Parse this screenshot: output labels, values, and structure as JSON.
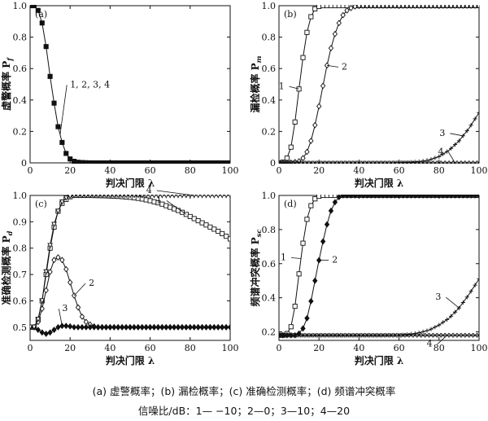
{
  "caption": {
    "panels": "(a) 虚警概率；(b) 漏检概率；(c) 准确检测概率；(d) 频谱冲突概率",
    "snr": "信噪比/dB：1— −10；2—0；3—10；4—20"
  },
  "chart_data": [
    {
      "type": "line",
      "panel_label": "(a)",
      "xlabel": "判决门限 λ",
      "ylabel": "虚警概率 P_f",
      "xlim": [
        0,
        100
      ],
      "ylim": [
        0,
        1.0
      ],
      "xticks": [
        0,
        20,
        40,
        60,
        80,
        100
      ],
      "yticks": [
        0,
        0.2,
        0.4,
        0.6,
        0.8,
        1.0
      ],
      "ytick_labels": [
        "0",
        "0.2",
        "0.4",
        "0.6",
        "0.8",
        "1.0"
      ],
      "grid": false,
      "series": [
        {
          "name": "1, 2, 3, 4",
          "marker": "filled-square",
          "annotation": "1, 2, 3, 4",
          "x": [
            0,
            2,
            4,
            6,
            8,
            10,
            12,
            14,
            16,
            18,
            20,
            22,
            24,
            26,
            28,
            30,
            35,
            40,
            45,
            50,
            55,
            60,
            65,
            70,
            75,
            80,
            85,
            90,
            95,
            100
          ],
          "y": [
            1.0,
            1.0,
            0.97,
            0.89,
            0.74,
            0.55,
            0.38,
            0.23,
            0.13,
            0.06,
            0.025,
            0.01,
            0.004,
            0.002,
            0.001,
            0,
            0,
            0,
            0,
            0,
            0,
            0,
            0,
            0,
            0,
            0,
            0,
            0,
            0,
            0
          ]
        }
      ]
    },
    {
      "type": "line",
      "panel_label": "(b)",
      "xlabel": "判决门限 λ",
      "ylabel": "漏检概率 P_m",
      "xlim": [
        0,
        100
      ],
      "ylim": [
        0,
        1.0
      ],
      "xticks": [
        0,
        20,
        40,
        60,
        80,
        100
      ],
      "yticks": [
        0,
        0.2,
        0.4,
        0.6,
        0.8,
        1.0
      ],
      "ytick_labels": [
        "0",
        "0.2",
        "0.4",
        "0.6",
        "0.8",
        "1.0"
      ],
      "grid": false,
      "series": [
        {
          "name": "1",
          "marker": "open-square",
          "x": [
            0,
            2,
            4,
            6,
            8,
            10,
            12,
            14,
            16,
            18,
            20,
            22,
            24,
            26,
            28,
            30,
            35,
            40,
            50,
            60,
            70,
            80,
            90,
            100
          ],
          "y": [
            0,
            0.005,
            0.03,
            0.1,
            0.26,
            0.47,
            0.67,
            0.83,
            0.93,
            0.98,
            0.995,
            1.0,
            1.0,
            1.0,
            1.0,
            1.0,
            1.0,
            1.0,
            1.0,
            1.0,
            1.0,
            1.0,
            1.0,
            1.0
          ]
        },
        {
          "name": "2",
          "marker": "open-diamond",
          "x": [
            0,
            5,
            8,
            10,
            12,
            14,
            16,
            18,
            20,
            22,
            24,
            26,
            28,
            30,
            32,
            34,
            36,
            38,
            40,
            45,
            50,
            60,
            70,
            80,
            90,
            100
          ],
          "y": [
            0,
            0,
            0.005,
            0.01,
            0.03,
            0.07,
            0.14,
            0.24,
            0.36,
            0.49,
            0.62,
            0.73,
            0.82,
            0.89,
            0.94,
            0.97,
            0.985,
            0.995,
            1.0,
            1.0,
            1.0,
            1.0,
            1.0,
            1.0,
            1.0,
            1.0
          ]
        },
        {
          "name": "3",
          "marker": "plus",
          "x": [
            0,
            10,
            20,
            30,
            40,
            50,
            55,
            60,
            65,
            70,
            75,
            80,
            85,
            90,
            95,
            100
          ],
          "y": [
            0,
            0,
            0,
            0,
            0,
            0,
            0,
            0.001,
            0.003,
            0.008,
            0.018,
            0.04,
            0.08,
            0.14,
            0.22,
            0.32
          ]
        },
        {
          "name": "4",
          "marker": "x",
          "x": [
            0,
            10,
            20,
            30,
            40,
            50,
            60,
            70,
            80,
            90,
            100
          ],
          "y": [
            0,
            0,
            0,
            0,
            0,
            0,
            0,
            0,
            0,
            0,
            0
          ]
        }
      ]
    },
    {
      "type": "line",
      "panel_label": "(c)",
      "xlabel": "判决门限 λ",
      "ylabel": "准确检测概率 P_d",
      "xlim": [
        0,
        100
      ],
      "ylim": [
        0.45,
        1.0
      ],
      "xticks": [
        0,
        20,
        40,
        60,
        80,
        100
      ],
      "yticks": [
        0.5,
        0.6,
        0.7,
        0.8,
        0.9,
        1.0
      ],
      "ytick_labels": [
        "0.5",
        "0.6",
        "0.7",
        "0.8",
        "0.9",
        "1.0"
      ],
      "grid": false,
      "series": [
        {
          "name": "1",
          "marker": "open-square",
          "x": [
            0,
            2,
            4,
            6,
            8,
            10,
            12,
            14,
            16,
            18,
            20,
            22,
            24,
            26,
            30,
            35,
            40,
            45,
            50,
            55,
            60,
            65,
            70,
            75,
            80,
            85,
            90,
            95,
            100
          ],
          "y": [
            0.5,
            0.5,
            0.53,
            0.6,
            0.7,
            0.8,
            0.88,
            0.94,
            0.97,
            0.985,
            0.995,
            1.0,
            1.0,
            1.0,
            1.0,
            0.999,
            0.998,
            0.996,
            0.993,
            0.988,
            0.98,
            0.97,
            0.955,
            0.94,
            0.92,
            0.9,
            0.88,
            0.86,
            0.835
          ]
        },
        {
          "name": "2",
          "marker": "open-diamond",
          "x": [
            0,
            2,
            4,
            6,
            8,
            10,
            12,
            14,
            16,
            18,
            20,
            22,
            24,
            26,
            28,
            30,
            32,
            34,
            36,
            38,
            40,
            45,
            50,
            55,
            60,
            65,
            70,
            75,
            80,
            85,
            90,
            95,
            100
          ],
          "y": [
            0.5,
            0.5,
            0.52,
            0.57,
            0.64,
            0.71,
            0.755,
            0.765,
            0.755,
            0.72,
            0.67,
            0.62,
            0.575,
            0.54,
            0.52,
            0.51,
            0.503,
            0.5,
            0.5,
            0.5,
            0.5,
            0.5,
            0.5,
            0.5,
            0.5,
            0.5,
            0.5,
            0.5,
            0.5,
            0.5,
            0.5,
            0.5,
            0.5
          ]
        },
        {
          "name": "3",
          "marker": "filled-diamond",
          "x": [
            0,
            2,
            4,
            6,
            8,
            10,
            12,
            14,
            16,
            18,
            20,
            22,
            24,
            26,
            28,
            30,
            35,
            40,
            45,
            50,
            55,
            60,
            65,
            70,
            75,
            80,
            85,
            90,
            95,
            100
          ],
          "y": [
            0.5,
            0.5,
            0.49,
            0.48,
            0.475,
            0.48,
            0.49,
            0.5,
            0.505,
            0.505,
            0.503,
            0.5,
            0.5,
            0.5,
            0.5,
            0.5,
            0.5,
            0.5,
            0.5,
            0.5,
            0.5,
            0.5,
            0.5,
            0.5,
            0.5,
            0.5,
            0.5,
            0.5,
            0.5,
            0.5
          ]
        },
        {
          "name": "4",
          "marker": "triangle-down",
          "x": [
            0,
            2,
            4,
            6,
            8,
            10,
            12,
            14,
            16,
            18,
            20,
            22,
            24,
            26,
            28,
            30,
            35,
            40,
            45,
            50,
            55,
            60,
            65,
            70,
            75,
            80,
            85,
            90,
            95,
            100
          ],
          "y": [
            0.5,
            0.5,
            0.53,
            0.6,
            0.71,
            0.81,
            0.89,
            0.94,
            0.975,
            0.99,
            0.997,
            1.0,
            1.0,
            1.0,
            1.0,
            1.0,
            1.0,
            1.0,
            1.0,
            1.0,
            1.0,
            1.0,
            1.0,
            1.0,
            1.0,
            1.0,
            1.0,
            1.0,
            1.0,
            1.0
          ]
        }
      ]
    },
    {
      "type": "line",
      "panel_label": "(d)",
      "xlabel": "判决门限 λ",
      "ylabel": "频谱冲突概率 P_sc",
      "xlim": [
        0,
        100
      ],
      "ylim": [
        0.15,
        1.0
      ],
      "xticks": [
        0,
        20,
        40,
        60,
        80,
        100
      ],
      "yticks": [
        0.2,
        0.4,
        0.6,
        0.8,
        1.0
      ],
      "ytick_labels": [
        "0.2",
        "0.4",
        "0.6",
        "0.8",
        "1.0"
      ],
      "grid": false,
      "series": [
        {
          "name": "1",
          "marker": "open-square",
          "x": [
            0,
            2,
            4,
            6,
            8,
            10,
            12,
            14,
            16,
            18,
            20,
            22,
            24,
            26,
            30,
            40,
            50,
            60,
            70,
            80,
            90,
            100
          ],
          "y": [
            0.18,
            0.18,
            0.19,
            0.23,
            0.35,
            0.54,
            0.72,
            0.86,
            0.94,
            0.98,
            0.995,
            1.0,
            1.0,
            1.0,
            1.0,
            1.0,
            1.0,
            1.0,
            1.0,
            1.0,
            1.0,
            1.0
          ]
        },
        {
          "name": "2",
          "marker": "filled-diamond",
          "x": [
            0,
            5,
            8,
            10,
            12,
            14,
            16,
            18,
            20,
            22,
            24,
            26,
            28,
            30,
            32,
            34,
            36,
            40,
            50,
            60,
            70,
            80,
            90,
            100
          ],
          "y": [
            0.18,
            0.18,
            0.18,
            0.19,
            0.22,
            0.28,
            0.38,
            0.5,
            0.62,
            0.73,
            0.83,
            0.91,
            0.96,
            0.99,
            1.0,
            1.0,
            1.0,
            1.0,
            1.0,
            1.0,
            1.0,
            1.0,
            1.0,
            1.0
          ]
        },
        {
          "name": "3",
          "marker": "plus",
          "x": [
            0,
            10,
            20,
            30,
            40,
            50,
            60,
            65,
            70,
            75,
            80,
            85,
            90,
            95,
            100
          ],
          "y": [
            0.18,
            0.18,
            0.18,
            0.18,
            0.18,
            0.18,
            0.181,
            0.185,
            0.195,
            0.21,
            0.24,
            0.28,
            0.34,
            0.42,
            0.51
          ]
        },
        {
          "name": "4",
          "marker": "x",
          "x": [
            0,
            10,
            20,
            30,
            40,
            50,
            60,
            70,
            80,
            90,
            100
          ],
          "y": [
            0.18,
            0.18,
            0.18,
            0.18,
            0.18,
            0.18,
            0.18,
            0.18,
            0.18,
            0.18,
            0.18
          ]
        }
      ]
    }
  ]
}
